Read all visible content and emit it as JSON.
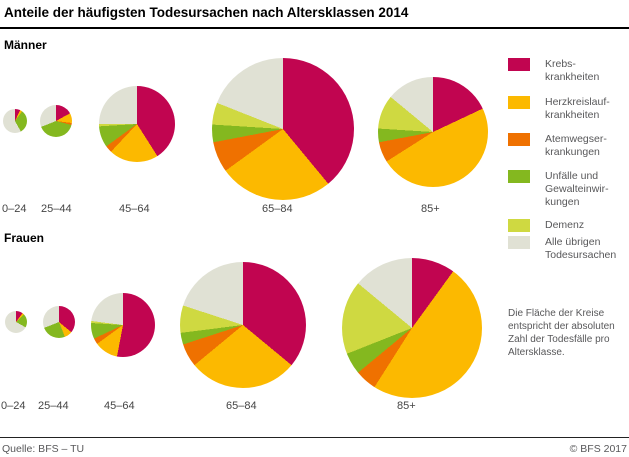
{
  "header": {
    "title": "Anteile der häufigsten Todesursachen nach Altersklassen 2014"
  },
  "footer": {
    "source": "Quelle: BFS – TU",
    "copyright": "© BFS 2017"
  },
  "chart_data": {
    "type": "pie",
    "title": "Anteile der häufigsten Todesursachen nach Altersklassen 2014",
    "note": "Die Fläche der Kreise\nentspricht der absoluten\nZahl der Todesfälle pro\nAltersklasse.",
    "legend_position": "right",
    "categories": [
      "Krebskrankheiten",
      "Herzkreislaufkrankheiten",
      "Atemwegserkrankungen",
      "Unfälle und Gewalteinwirkungen",
      "Demenz",
      "Alle übrigen Todesursachen"
    ],
    "legend_labels": [
      "Krebs-\nkrankheiten",
      "Herzkreislauf-\nkrankheiten",
      "Atemwegser-\nkrankungen",
      "Unfälle und\nGewalteinwir-\nkungen",
      "Demenz",
      "Alle übrigen\nTodesursachen"
    ],
    "colors": [
      "#c10550",
      "#fcb900",
      "#ef7100",
      "#84b81f",
      "#cfd941",
      "#e0e1d4"
    ],
    "unit": "percent share per pie; circle area proportional to absolute deaths per age class",
    "groups": [
      {
        "name": "Männer",
        "pies": [
          {
            "age": "0–24",
            "radius_px": 12,
            "values": [
              7,
              3,
              0,
              32,
              0,
              58
            ]
          },
          {
            "age": "25–44",
            "radius_px": 16,
            "values": [
              17,
              10,
              2,
              40,
              0,
              31
            ]
          },
          {
            "age": "45–64",
            "radius_px": 38,
            "values": [
              41,
              21,
              3,
              9,
              1,
              25
            ]
          },
          {
            "age": "65–84",
            "radius_px": 71,
            "values": [
              39,
              26,
              7,
              4,
              5,
              19
            ]
          },
          {
            "age": "85+",
            "radius_px": 55,
            "values": [
              18,
              48,
              6,
              4,
              10,
              14
            ]
          }
        ]
      },
      {
        "name": "Frauen",
        "pies": [
          {
            "age": "0–24",
            "radius_px": 11,
            "values": [
              10,
              3,
              0,
              20,
              0,
              67
            ]
          },
          {
            "age": "25–44",
            "radius_px": 16,
            "values": [
              36,
              8,
              0,
              25,
              0,
              31
            ]
          },
          {
            "age": "45–64",
            "radius_px": 32,
            "values": [
              53,
              12,
              3,
              8,
              1,
              23
            ]
          },
          {
            "age": "65–84",
            "radius_px": 63,
            "values": [
              36,
              28,
              6,
              3,
              7,
              20
            ]
          },
          {
            "age": "85+",
            "radius_px": 70,
            "values": [
              10,
              49,
              5,
              5,
              17,
              14
            ]
          }
        ]
      }
    ]
  }
}
